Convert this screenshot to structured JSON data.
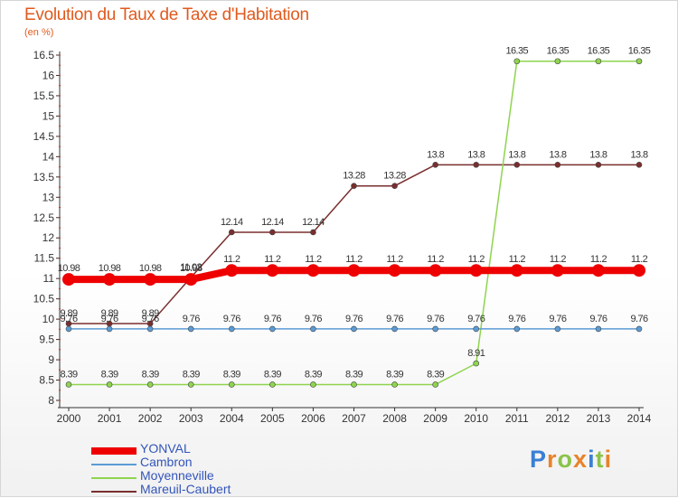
{
  "header": {
    "title": "Evolution du Taux de Taxe d'Habitation",
    "subtitle": "(en %)"
  },
  "logo": {
    "text": "Proxiti"
  },
  "chart_data": {
    "type": "line",
    "title": "Evolution du Taux de Taxe d'Habitation",
    "ylabel": "(en %)",
    "xlabel": "",
    "x": [
      "2000",
      "2001",
      "2002",
      "2003",
      "2004",
      "2005",
      "2006",
      "2007",
      "2008",
      "2009",
      "2010",
      "2011",
      "2012",
      "2013",
      "2014"
    ],
    "ylim": [
      8,
      16.5
    ],
    "yticks": [
      "8",
      "8.5",
      "9",
      "9.5",
      "10",
      "10.5",
      "11",
      "11.5",
      "12",
      "12.5",
      "13",
      "13.5",
      "14",
      "14.5",
      "15",
      "15.5",
      "16",
      "16.5"
    ],
    "grid": false,
    "legend_position": "bottom-left",
    "series": [
      {
        "name": "YONVAL",
        "color": "#ee0000",
        "values": [
          10.98,
          10.98,
          10.98,
          10.98,
          11.2,
          11.2,
          11.2,
          11.2,
          11.2,
          11.2,
          11.2,
          11.2,
          11.2,
          11.2,
          11.2
        ],
        "labels": [
          "10.98",
          "10.98",
          "10.98",
          "10.98",
          "11.2",
          "11.2",
          "11.2",
          "11.2",
          "11.2",
          "11.2",
          "11.2",
          "11.2",
          "11.2",
          "11.2",
          "11.2"
        ]
      },
      {
        "name": "Cambron",
        "color": "#5b9bd5",
        "values": [
          9.76,
          9.76,
          9.76,
          9.76,
          9.76,
          9.76,
          9.76,
          9.76,
          9.76,
          9.76,
          9.76,
          9.76,
          9.76,
          9.76,
          9.76
        ],
        "labels": [
          "9.76",
          "9.76",
          "9.76",
          "9.76",
          "9.76",
          "9.76",
          "9.76",
          "9.76",
          "9.76",
          "9.76",
          "9.76",
          "9.76",
          "9.76",
          "9.76",
          "9.76"
        ]
      },
      {
        "name": "Moyenneville",
        "color": "#8fd44f",
        "values": [
          8.39,
          8.39,
          8.39,
          8.39,
          8.39,
          8.39,
          8.39,
          8.39,
          8.39,
          8.39,
          8.91,
          16.35,
          16.35,
          16.35,
          16.35
        ],
        "labels": [
          "8.39",
          "8.39",
          "8.39",
          "8.39",
          "8.39",
          "8.39",
          "8.39",
          "8.39",
          "8.39",
          "8.39",
          "8.91",
          "16.35",
          "16.35",
          "16.35",
          "16.35"
        ]
      },
      {
        "name": "Mareuil-Caubert",
        "color": "#7a2e2e",
        "values": [
          9.89,
          9.89,
          9.89,
          11.03,
          12.14,
          12.14,
          12.14,
          13.28,
          13.28,
          13.8,
          13.8,
          13.8,
          13.8,
          13.8,
          13.8
        ],
        "labels": [
          "9.89",
          "9.89",
          "9.89",
          "11.03",
          "12.14",
          "12.14",
          "12.14",
          "13.28",
          "13.28",
          "13.8",
          "13.8",
          "13.8",
          "13.8",
          "13.8",
          "13.8"
        ]
      }
    ]
  }
}
